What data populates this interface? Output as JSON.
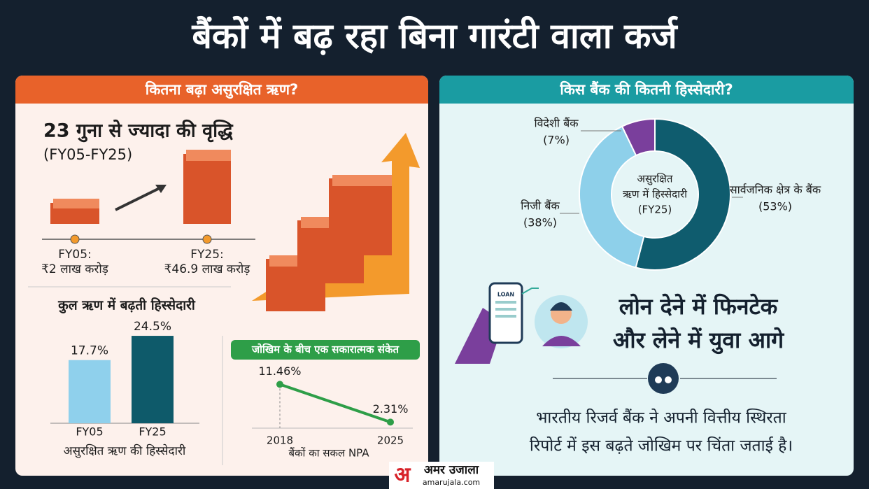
{
  "header": {
    "title": "बैंकों में बढ़ रहा बिना गारंटी वाला कर्ज"
  },
  "left": {
    "heading": "कितना बढ़ा असुरक्षित ऋण?",
    "growth": "23 गुना से ज्यादा की वृद्धि",
    "period": "(FY05-FY25)",
    "start": {
      "label": "FY05:",
      "amount": "₹2 लाख करोड़"
    },
    "end": {
      "label": "FY25:",
      "amount": "₹46.9 लाख करोड़"
    }
  },
  "right": {
    "heading": "किस बैंक की कितनी हिस्सेदारी?",
    "phone": "LOAN",
    "headline": [
      "लोन देने में फिनटेक",
      "और लेने में युवा आगे"
    ],
    "quote": [
      "भारतीय रिजर्व बैंक ने अपनी वित्तीय स्थिरता",
      "रिपोर्ट में इस बढ़ते जोखिम पर चिंता जताई है।"
    ]
  },
  "chart_data": [
    {
      "type": "bar",
      "title": "कुल ऋण में बढ़ती हिस्सेदारी",
      "x_label": "असुरक्षित ऋण की हिस्सेदारी",
      "categories": [
        "FY05",
        "FY25"
      ],
      "values": [
        17.7,
        24.5
      ],
      "value_labels": [
        "17.7%",
        "24.5%"
      ],
      "colors": [
        "#8fd0ec",
        "#0e5a6a"
      ]
    },
    {
      "type": "line",
      "title": "जोखिम के बीच एक सकारात्मक संकेत",
      "x_label": "बैंकों का सकल NPA",
      "x": [
        2018,
        2025
      ],
      "values": [
        11.46,
        2.31
      ],
      "value_labels": [
        "11.46%",
        "2.31%"
      ],
      "color": "#2e9e48"
    },
    {
      "type": "pie",
      "center_label": [
        "असुरक्षित",
        "ऋण में हिस्सेदारी",
        "(FY25)"
      ],
      "categories": [
        "सार्वजनिक क्षेत्र के बैंक",
        "निजी बैंक",
        "विदेशी बैंक"
      ],
      "values": [
        53,
        38,
        7
      ],
      "value_labels": [
        "(53%)",
        "(38%)",
        "(7%)"
      ],
      "colors": [
        "#0f5c6e",
        "#8ed0ea",
        "#7a3f9c"
      ]
    }
  ],
  "footer": {
    "logo_mark": "अ",
    "logo": "अमर उजाला",
    "site": "amarujala.com"
  }
}
